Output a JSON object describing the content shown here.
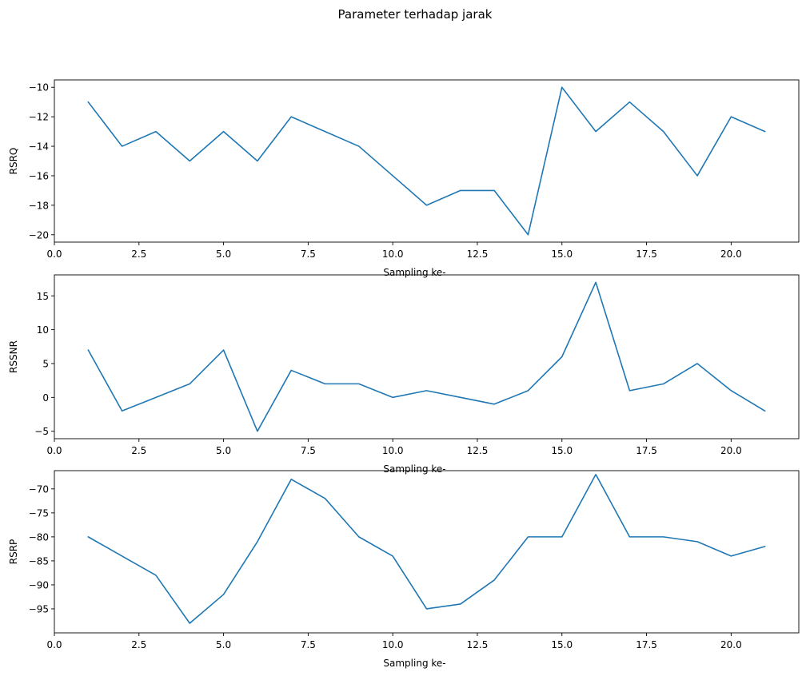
{
  "title": "Parameter terhadap jarak",
  "colors": {
    "series": "#1f77b4"
  },
  "chart_data": [
    {
      "type": "line",
      "xlabel": "Sampling ke-",
      "ylabel": "RSRQ",
      "xlim": [
        0,
        22
      ],
      "ylim": [
        -20.5,
        -9.5
      ],
      "xticks": [
        0,
        2.5,
        5,
        7.5,
        10,
        12.5,
        15,
        17.5,
        20
      ],
      "xtick_labels": [
        "0.0",
        "2.5",
        "5.0",
        "7.5",
        "10.0",
        "12.5",
        "15.0",
        "17.5",
        "20.0"
      ],
      "yticks": [
        -20,
        -18,
        -16,
        -14,
        -12,
        -10
      ],
      "ytick_labels": [
        "−20",
        "−18",
        "−16",
        "−14",
        "−12",
        "−10"
      ],
      "x": [
        1,
        2,
        3,
        4,
        5,
        6,
        7,
        8,
        9,
        10,
        11,
        12,
        13,
        14,
        15,
        16,
        17,
        18,
        19,
        20,
        21
      ],
      "y": [
        -11,
        -14,
        -13,
        -15,
        -13,
        -15,
        -12,
        -13,
        -14,
        -16,
        -18,
        -17,
        -17,
        -20,
        -10,
        -13,
        -11,
        -13,
        -16,
        -12,
        -13
      ]
    },
    {
      "type": "line",
      "xlabel": "Sampling ke-",
      "ylabel": "RSSNR",
      "xlim": [
        0,
        22
      ],
      "ylim": [
        -6.1,
        18.1
      ],
      "xticks": [
        0,
        2.5,
        5,
        7.5,
        10,
        12.5,
        15,
        17.5,
        20
      ],
      "xtick_labels": [
        "0.0",
        "2.5",
        "5.0",
        "7.5",
        "10.0",
        "12.5",
        "15.0",
        "17.5",
        "20.0"
      ],
      "yticks": [
        -5,
        0,
        5,
        10,
        15
      ],
      "ytick_labels": [
        "−5",
        "0",
        "5",
        "10",
        "15"
      ],
      "x": [
        1,
        2,
        3,
        4,
        5,
        6,
        7,
        8,
        9,
        10,
        11,
        12,
        13,
        14,
        15,
        16,
        17,
        18,
        19,
        20,
        21
      ],
      "y": [
        7,
        -2,
        0,
        2,
        7,
        -5,
        4,
        2,
        2,
        0,
        1,
        0,
        -1,
        1,
        6,
        17,
        1,
        2,
        5,
        1,
        -2
      ]
    },
    {
      "type": "line",
      "xlabel": "Sampling ke-",
      "ylabel": "RSRP",
      "xlim": [
        0,
        22
      ],
      "ylim": [
        -100,
        -66.2
      ],
      "xticks": [
        0,
        2.5,
        5,
        7.5,
        10,
        12.5,
        15,
        17.5,
        20
      ],
      "xtick_labels": [
        "0.0",
        "2.5",
        "5.0",
        "7.5",
        "10.0",
        "12.5",
        "15.0",
        "17.5",
        "20.0"
      ],
      "yticks": [
        -95,
        -90,
        -85,
        -80,
        -75,
        -70
      ],
      "ytick_labels": [
        "−95",
        "−90",
        "−85",
        "−80",
        "−75",
        "−70"
      ],
      "x": [
        1,
        2,
        3,
        4,
        5,
        6,
        7,
        8,
        9,
        10,
        11,
        12,
        13,
        14,
        15,
        16,
        17,
        18,
        19,
        20,
        21
      ],
      "y": [
        -80,
        -84,
        -88,
        -98,
        -92,
        -81,
        -68,
        -72,
        -80,
        -84,
        -95,
        -94,
        -89,
        -80,
        -80,
        -67,
        -80,
        -80,
        -81,
        -84,
        -82
      ]
    }
  ]
}
